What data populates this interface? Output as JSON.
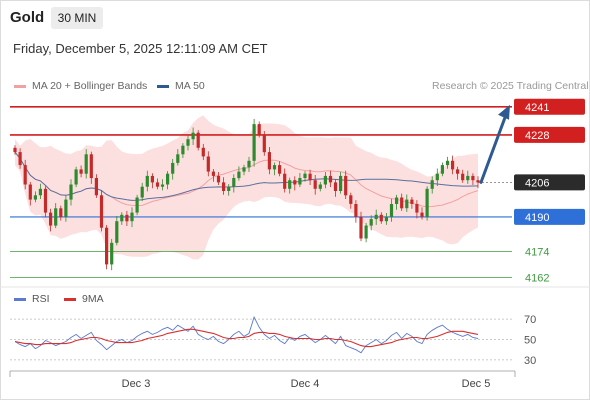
{
  "header": {
    "asset": "Gold",
    "timeframe": "30 MIN",
    "datetime": "Friday, December 5, 2025 12:11:09 AM CET"
  },
  "legend": {
    "ma20_bb": "MA 20 + Bollinger Bands",
    "ma50": "MA 50",
    "credit": "Research © 2025 Trading Central",
    "rsi": "RSI",
    "rsi_ma": "9MA"
  },
  "colors": {
    "resistance": "#d21f1f",
    "pivot": "#2b2b2b",
    "support1": "#2f6fd8",
    "support2": "#3f9a3f",
    "bollinger": "#f9c7c7",
    "ma20": "#f3a0a0",
    "ma50": "#5a6f9c",
    "arrow": "#2e5a92",
    "candle_up": "#2f8a2f",
    "candle_down": "#c42a2a",
    "rsi": "#5b7bd0",
    "rsi_ma": "#d93030"
  },
  "chart_data": {
    "type": "candlestick",
    "ylim": [
      4158,
      4246
    ],
    "x_ticks": [
      "Dec 3",
      "Dec 4",
      "Dec 5"
    ],
    "levels": [
      {
        "label": "4241",
        "value": 4241,
        "role": "resistance"
      },
      {
        "label": "4228",
        "value": 4228,
        "role": "resistance"
      },
      {
        "label": "4206",
        "value": 4206,
        "role": "pivot"
      },
      {
        "label": "4190",
        "value": 4190,
        "role": "support"
      },
      {
        "label": "4174",
        "value": 4174,
        "role": "support-minor"
      },
      {
        "label": "4162",
        "value": 4162,
        "role": "support-minor"
      }
    ],
    "closes": [
      4220,
      4214,
      4205,
      4198,
      4200,
      4203,
      4192,
      4186,
      4194,
      4190,
      4198,
      4205,
      4212,
      4210,
      4219,
      4208,
      4200,
      4185,
      4168,
      4178,
      4188,
      4191,
      4188,
      4192,
      4199,
      4204,
      4209,
      4206,
      4204,
      4205,
      4210,
      4215,
      4219,
      4223,
      4226,
      4229,
      4222,
      4218,
      4211,
      4209,
      4206,
      4202,
      4204,
      4208,
      4211,
      4213,
      4216,
      4233,
      4228,
      4220,
      4212,
      4214,
      4210,
      4203,
      4207,
      4205,
      4208,
      4210,
      4207,
      4203,
      4205,
      4209,
      4206,
      4202,
      4209,
      4200,
      4196,
      4190,
      4180,
      4186,
      4189,
      4191,
      4188,
      4190,
      4196,
      4199,
      4194,
      4198,
      4196,
      4192,
      4190,
      4203,
      4207,
      4210,
      4214,
      4216,
      4212,
      4210,
      4207,
      4209,
      4207,
      4206
    ],
    "rsi": {
      "ylim": [
        25,
        75
      ],
      "ticks": [
        70,
        50,
        30
      ]
    },
    "rsi_values": [
      48,
      45,
      43,
      46,
      41,
      44,
      49,
      47,
      44,
      46,
      48,
      52,
      55,
      51,
      54,
      57,
      49,
      45,
      40,
      44,
      48,
      50,
      47,
      49,
      53,
      56,
      58,
      55,
      57,
      60,
      62,
      59,
      64,
      61,
      58,
      63,
      55,
      52,
      50,
      53,
      48,
      46,
      50,
      55,
      58,
      53,
      56,
      72,
      62,
      55,
      51,
      54,
      49,
      46,
      52,
      49,
      53,
      55,
      51,
      47,
      50,
      54,
      50,
      46,
      53,
      44,
      42,
      40,
      37,
      44,
      47,
      50,
      46,
      49,
      54,
      57,
      51,
      56,
      53,
      48,
      46,
      55,
      59,
      62,
      64,
      60,
      57,
      55,
      53,
      55,
      52,
      51
    ],
    "rsi_ma_values": [
      48,
      47,
      46,
      46,
      45,
      45,
      46,
      46,
      46,
      46,
      46,
      47,
      49,
      50,
      51,
      52,
      52,
      51,
      49,
      48,
      47,
      47,
      47,
      47,
      48,
      49,
      51,
      52,
      53,
      54,
      56,
      57,
      58,
      59,
      60,
      60,
      59,
      58,
      57,
      56,
      54,
      52,
      51,
      51,
      52,
      52,
      53,
      56,
      57,
      57,
      56,
      56,
      55,
      53,
      52,
      51,
      51,
      51,
      51,
      50,
      50,
      51,
      51,
      50,
      50,
      49,
      48,
      46,
      44,
      43,
      43,
      44,
      45,
      46,
      47,
      49,
      50,
      51,
      52,
      52,
      51,
      51,
      52,
      53,
      55,
      57,
      58,
      58,
      58,
      57,
      56,
      55
    ]
  }
}
